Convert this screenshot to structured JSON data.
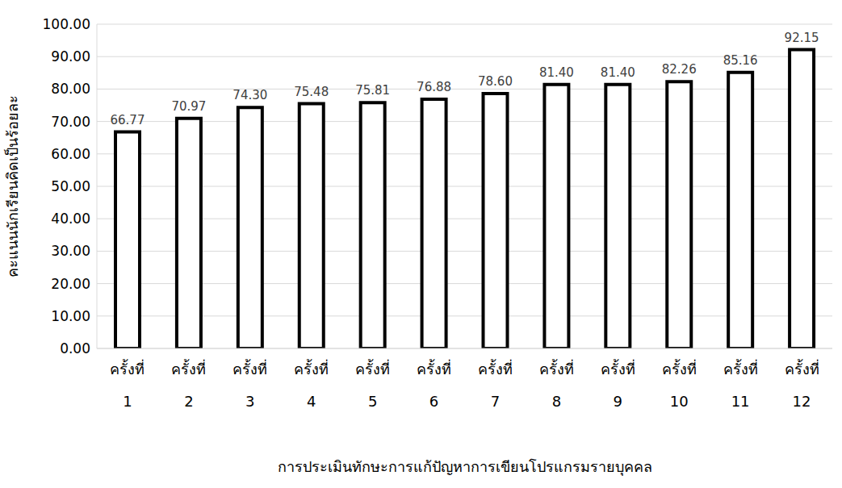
{
  "chart_data": {
    "type": "bar",
    "x_label": "การประเมินทักษะการแก้ปัญหาการเขียนโปรแกรมรายบุคคล",
    "y_label": "คะแนนนักเรียนคิดเป็นร้อยละ",
    "categories": [
      "ครั้งที่ 1",
      "ครั้งที่ 2",
      "ครั้งที่ 3",
      "ครั้งที่ 4",
      "ครั้งที่ 5",
      "ครั้งที่ 6",
      "ครั้งที่ 7",
      "ครั้งที่ 8",
      "ครั้งที่ 9",
      "ครั้งที่ 10",
      "ครั้งที่ 11",
      "ครั้งที่ 12"
    ],
    "values": [
      66.77,
      70.97,
      74.3,
      75.48,
      75.81,
      76.88,
      78.6,
      81.4,
      81.4,
      82.26,
      85.16,
      92.15
    ],
    "value_labels": [
      "66.77",
      "70.97",
      "74.30",
      "75.48",
      "75.81",
      "76.88",
      "78.60",
      "81.40",
      "81.40",
      "82.26",
      "85.16",
      "92.15"
    ],
    "data_labels": true,
    "color": "#ffffff",
    "ylim": [
      0,
      100
    ],
    "yticks": [
      {
        "value": 0,
        "label": "0.00"
      },
      {
        "value": 10,
        "label": "10.00"
      },
      {
        "value": 20,
        "label": "20.00"
      },
      {
        "value": 30,
        "label": "30.00"
      },
      {
        "value": 40,
        "label": "40.00"
      },
      {
        "value": 50,
        "label": "50.00"
      },
      {
        "value": 60,
        "label": "60.00"
      },
      {
        "value": 70,
        "label": "70.00"
      },
      {
        "value": 80,
        "label": "80.00"
      },
      {
        "value": 90,
        "label": "90.00"
      },
      {
        "value": 100,
        "label": "100.00"
      }
    ],
    "grid": true
  }
}
